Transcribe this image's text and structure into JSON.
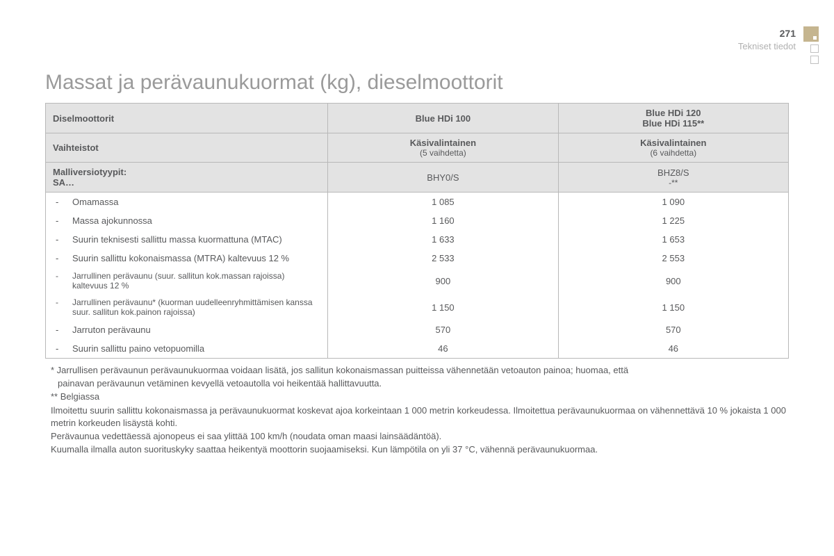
{
  "header": {
    "page_number": "271",
    "section_label": "Tekniset tiedot"
  },
  "title": "Massat ja perävaunukuormat (kg), dieselmoottorit",
  "colors": {
    "text": "#58595b",
    "title_gray": "#9a9a9a",
    "header_bg": "#e3e3e3",
    "border": "#b8b8b8",
    "accent_tan": "#c5b58f",
    "deco_outline": "#c0c0c0",
    "muted": "#b0b0b0"
  },
  "table": {
    "col_widths": [
      "38%",
      "31%",
      "31%"
    ],
    "header_rows": [
      {
        "label": "Diselmoottorit",
        "col1_line1": "Blue HDi 100",
        "col1_line2": "",
        "col2_line1": "Blue HDi 120",
        "col2_line2": "Blue HDi 115**"
      },
      {
        "label": "Vaihteistot",
        "col1_line1": "Käsivalintainen",
        "col1_line2": "(5 vaihdetta)",
        "col2_line1": "Käsivalintainen",
        "col2_line2": "(6 vaihdetta)"
      },
      {
        "label_line1": "Malliversiotyypit:",
        "label_line2": "SA…",
        "col1_line1": "BHY0/S",
        "col1_line2": "",
        "col2_line1": "BHZ8/S",
        "col2_line2": "-**"
      }
    ],
    "rows": [
      {
        "label": "Omamassa",
        "v1": "1 085",
        "v2": "1 090",
        "small": false
      },
      {
        "label": "Massa ajokunnossa",
        "v1": "1 160",
        "v2": "1 225",
        "small": false
      },
      {
        "label": "Suurin teknisesti sallittu massa kuormattuna (MTAC)",
        "v1": "1 633",
        "v2": "1 653",
        "small": false
      },
      {
        "label": "Suurin sallittu kokonaismassa (MTRA) kaltevuus 12 %",
        "v1": "2 533",
        "v2": "2 553",
        "small": false
      },
      {
        "label": "Jarrullinen perävaunu (suur. sallitun kok.massan rajoissa) kaltevuus 12 %",
        "v1": "900",
        "v2": "900",
        "small": true
      },
      {
        "label": "Jarrullinen perävaunu* (kuorman uudelleenryhmittämisen kanssa suur. sallitun kok.painon rajoissa)",
        "v1": "1 150",
        "v2": "1 150",
        "small": true
      },
      {
        "label": "Jarruton perävaunu",
        "v1": "570",
        "v2": "570",
        "small": false
      },
      {
        "label": "Suurin sallittu paino vetopuomilla",
        "v1": "46",
        "v2": "46",
        "small": false
      }
    ]
  },
  "footnotes": {
    "f1a": "* Jarrullisen perävaunun perävaunukuormaa voidaan lisätä, jos sallitun kokonaismassan puitteissa vähennetään vetoauton painoa; huomaa, että",
    "f1b": "painavan perävaunun vetäminen kevyellä vetoautolla voi heikentää hallittavuutta.",
    "f2": "** Belgiassa",
    "f3": "Ilmoitettu suurin sallittu kokonaismassa ja perävaunukuormat koskevat ajoa korkeintaan 1 000 metrin korkeudessa. Ilmoitettua perävaunukuormaa on vähennettävä 10 % jokaista 1 000 metrin korkeuden lisäystä kohti.",
    "f4": "Perävaunua vedettäessä ajonopeus ei saa ylittää 100 km/h (noudata oman maasi lainsäädäntöä).",
    "f5": "Kuumalla ilmalla auton suorituskyky saattaa heikentyä moottorin suojaamiseksi. Kun lämpötila on yli 37 °C, vähennä perävaunukuormaa."
  }
}
